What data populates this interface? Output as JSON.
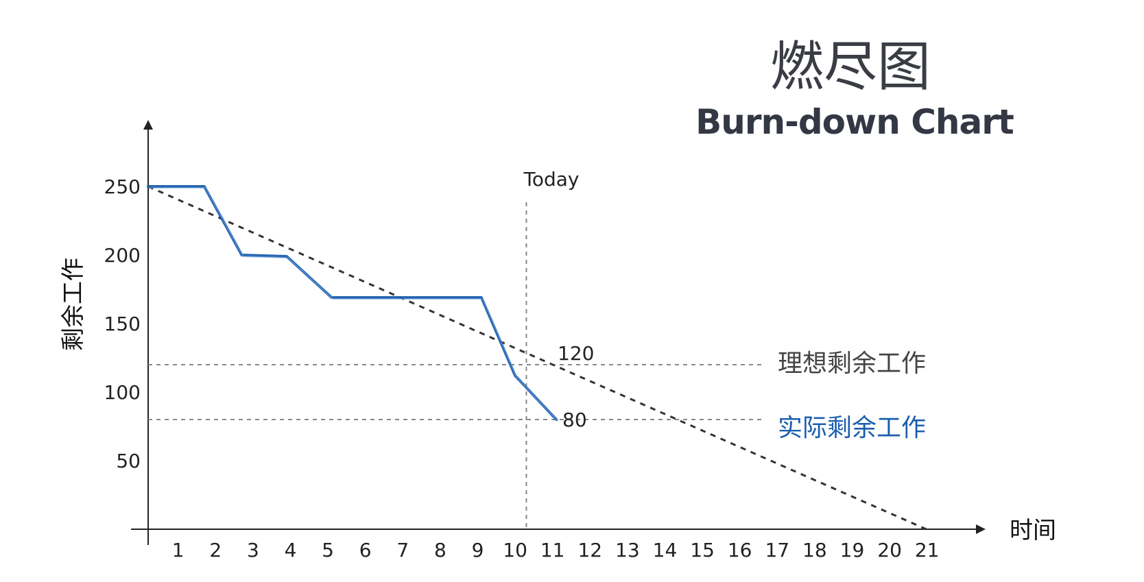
{
  "header": {
    "title_cn": "燃尽图",
    "title_en": "Burn-down Chart"
  },
  "chart_data": {
    "type": "line",
    "title": "燃尽图 Burn-down Chart",
    "xlabel": "时间",
    "ylabel": "剩余工作",
    "x_ticks": [
      1,
      2,
      3,
      4,
      5,
      6,
      7,
      8,
      9,
      10,
      11,
      12,
      13,
      14,
      15,
      16,
      17,
      18,
      19,
      20,
      21
    ],
    "y_ticks": [
      50,
      100,
      150,
      200,
      250
    ],
    "xlim": [
      0,
      22
    ],
    "ylim": [
      0,
      280
    ],
    "grid": false,
    "series": [
      {
        "name": "理想剩余工作",
        "style": "dashed",
        "color": "#333333",
        "x": [
          0,
          21
        ],
        "y": [
          250,
          0
        ]
      },
      {
        "name": "实际剩余工作",
        "style": "solid",
        "color": "#1b5fad",
        "x": [
          0,
          1.5,
          2.5,
          3.7,
          4.9,
          5.5,
          7,
          8.5,
          8.9,
          9.8,
          10.9
        ],
        "y": [
          250,
          250,
          200,
          199,
          169,
          169,
          169,
          169,
          169,
          112,
          80
        ]
      }
    ],
    "annotations": {
      "today_label": "Today",
      "today_x": 11,
      "ideal_value_label": "120",
      "ideal_value": 120,
      "actual_value_label": "80",
      "actual_value": 80
    }
  }
}
